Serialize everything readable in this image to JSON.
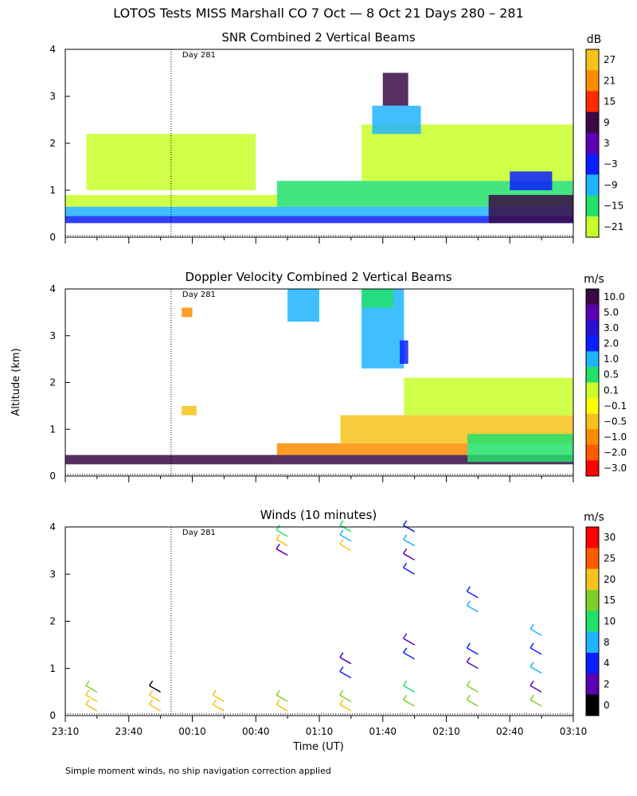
{
  "page": {
    "title": "LOTOS Tests MISS Marshall CO   7 Oct —  8 Oct 21 Days 280 – 281",
    "y_axis_label": "Altitude (km)",
    "x_axis_label": "Time (UT)",
    "footnote": "Simple moment winds, no ship navigation correction applied"
  },
  "chart_data": [
    {
      "id": "snr",
      "type": "heatmap",
      "title": "SNR Combined 2 Vertical Beams",
      "units": "dB",
      "ylim": [
        0,
        4
      ],
      "yticks": [
        "0",
        "1",
        "2",
        "3",
        "4"
      ],
      "xlim_minutes": [
        0,
        240
      ],
      "day_marker": {
        "label": "Day 281",
        "t_minutes": 50
      },
      "colorbar": {
        "labels": [
          "27",
          "21",
          "15",
          "9",
          "3",
          "−3",
          "−9",
          "−15",
          "−21"
        ],
        "colors": [
          "#f7c21a",
          "#ff8c00",
          "#ff2a00",
          "#3a0a45",
          "#5a00b0",
          "#0a1fff",
          "#1eb4ff",
          "#22e06a",
          "#c8ff2a"
        ]
      },
      "regions": [
        {
          "t": [
            0,
            240
          ],
          "alt": [
            0.45,
            0.65
          ],
          "color": "#1eb4ff"
        },
        {
          "t": [
            0,
            240
          ],
          "alt": [
            0.3,
            0.45
          ],
          "color": "#0a1fff"
        },
        {
          "t": [
            0,
            100
          ],
          "alt": [
            0.65,
            0.9
          ],
          "color": "#c8ff2a"
        },
        {
          "t": [
            100,
            240
          ],
          "alt": [
            0.65,
            1.2
          ],
          "color": "#22e06a"
        },
        {
          "t": [
            140,
            240
          ],
          "alt": [
            1.2,
            2.4
          ],
          "color": "#c8ff2a"
        },
        {
          "t": [
            200,
            240
          ],
          "alt": [
            0.3,
            0.9
          ],
          "color": "#3a0a45"
        },
        {
          "t": [
            150,
            162
          ],
          "alt": [
            2.8,
            3.5
          ],
          "color": "#3a0a45"
        },
        {
          "t": [
            145,
            168
          ],
          "alt": [
            2.2,
            2.8
          ],
          "color": "#1eb4ff"
        },
        {
          "t": [
            10,
            90
          ],
          "alt": [
            1.0,
            2.2
          ],
          "color": "#c8ff2a"
        },
        {
          "t": [
            210,
            230
          ],
          "alt": [
            1.0,
            1.4
          ],
          "color": "#0a1fff"
        }
      ]
    },
    {
      "id": "doppler",
      "type": "heatmap",
      "title": "Doppler Velocity Combined 2 Vertical Beams",
      "units": "m/s",
      "ylim": [
        0,
        4
      ],
      "yticks": [
        "0",
        "1",
        "2",
        "3",
        "4"
      ],
      "xlim_minutes": [
        0,
        240
      ],
      "day_marker": {
        "label": "Day 281",
        "t_minutes": 50
      },
      "colorbar": {
        "labels": [
          "10.0",
          "5.0",
          "3.0",
          "2.0",
          "1.0",
          "0.5",
          "0.1",
          "−0.1",
          "−0.5",
          "−1.0",
          "−2.0",
          "−3.0"
        ],
        "colors": [
          "#3a0a45",
          "#5a00b0",
          "#2a10d0",
          "#0a1fff",
          "#1eb4ff",
          "#22e06a",
          "#c8ff2a",
          "#ffff00",
          "#f7c21a",
          "#ff8c00",
          "#ff5a00",
          "#ff0000"
        ]
      },
      "regions": [
        {
          "t": [
            0,
            240
          ],
          "alt": [
            0.25,
            0.45
          ],
          "color": "#3a0a45"
        },
        {
          "t": [
            100,
            190
          ],
          "alt": [
            0.45,
            0.7
          ],
          "color": "#ff8c00"
        },
        {
          "t": [
            130,
            240
          ],
          "alt": [
            0.7,
            1.3
          ],
          "color": "#f7c21a"
        },
        {
          "t": [
            190,
            240
          ],
          "alt": [
            0.3,
            0.9
          ],
          "color": "#22e06a"
        },
        {
          "t": [
            140,
            160
          ],
          "alt": [
            2.3,
            4.0
          ],
          "color": "#1eb4ff"
        },
        {
          "t": [
            140,
            155
          ],
          "alt": [
            3.6,
            4.0
          ],
          "color": "#22e06a"
        },
        {
          "t": [
            158,
            162
          ],
          "alt": [
            2.4,
            2.9
          ],
          "color": "#0a1fff"
        },
        {
          "t": [
            160,
            240
          ],
          "alt": [
            1.3,
            2.1
          ],
          "color": "#c8ff2a"
        },
        {
          "t": [
            105,
            120
          ],
          "alt": [
            3.3,
            4.0
          ],
          "color": "#1eb4ff"
        },
        {
          "t": [
            55,
            60
          ],
          "alt": [
            3.4,
            3.6
          ],
          "color": "#ff8c00"
        },
        {
          "t": [
            55,
            62
          ],
          "alt": [
            1.3,
            1.5
          ],
          "color": "#f7c21a"
        }
      ]
    },
    {
      "id": "winds",
      "type": "barbs",
      "title": "Winds (10 minutes)",
      "units": "m/s",
      "ylim": [
        0,
        4
      ],
      "yticks": [
        "0",
        "1",
        "2",
        "3",
        "4"
      ],
      "xlim_minutes": [
        0,
        240
      ],
      "day_marker": {
        "label": "Day 281",
        "t_minutes": 50
      },
      "xticks": [
        "23:10",
        "23:40",
        "00:10",
        "00:40",
        "01:10",
        "01:40",
        "02:10",
        "02:40",
        "03:10"
      ],
      "colorbar": {
        "labels": [
          "30",
          "25",
          "20",
          "15",
          "10",
          "8",
          "4",
          "2",
          "0"
        ],
        "colors": [
          "#ff0000",
          "#ff5a00",
          "#f7c21a",
          "#7dd12a",
          "#22e06a",
          "#1eb4ff",
          "#0a1fff",
          "#5a00b0",
          "#000000"
        ]
      },
      "profiles": [
        {
          "t": 15,
          "barbs": [
            {
              "alt": 0.1,
              "color": "#f7c21a"
            },
            {
              "alt": 0.3,
              "color": "#f7c21a"
            },
            {
              "alt": 0.5,
              "color": "#7dd12a"
            }
          ]
        },
        {
          "t": 45,
          "barbs": [
            {
              "alt": 0.1,
              "color": "#f7c21a"
            },
            {
              "alt": 0.3,
              "color": "#f7c21a"
            },
            {
              "alt": 0.5,
              "color": "#000000"
            }
          ]
        },
        {
          "t": 75,
          "barbs": [
            {
              "alt": 0.1,
              "color": "#f7c21a"
            },
            {
              "alt": 0.3,
              "color": "#f7c21a"
            }
          ]
        },
        {
          "t": 105,
          "barbs": [
            {
              "alt": 0.1,
              "color": "#f7c21a"
            },
            {
              "alt": 0.3,
              "color": "#7dd12a"
            },
            {
              "alt": 3.4,
              "color": "#5a00b0"
            },
            {
              "alt": 3.6,
              "color": "#f7c21a"
            },
            {
              "alt": 3.8,
              "color": "#22e06a"
            }
          ]
        },
        {
          "t": 135,
          "barbs": [
            {
              "alt": 0.1,
              "color": "#f7c21a"
            },
            {
              "alt": 0.3,
              "color": "#7dd12a"
            },
            {
              "alt": 0.8,
              "color": "#0a1fff"
            },
            {
              "alt": 1.1,
              "color": "#5a00b0"
            },
            {
              "alt": 3.5,
              "color": "#f7c21a"
            },
            {
              "alt": 3.7,
              "color": "#1eb4ff"
            },
            {
              "alt": 3.9,
              "color": "#22e06a"
            }
          ]
        },
        {
          "t": 165,
          "barbs": [
            {
              "alt": 0.2,
              "color": "#7dd12a"
            },
            {
              "alt": 0.5,
              "color": "#22e06a"
            },
            {
              "alt": 1.2,
              "color": "#0a1fff"
            },
            {
              "alt": 1.5,
              "color": "#5a00b0"
            },
            {
              "alt": 3.0,
              "color": "#0a1fff"
            },
            {
              "alt": 3.3,
              "color": "#5a00b0"
            },
            {
              "alt": 3.6,
              "color": "#1eb4ff"
            },
            {
              "alt": 3.9,
              "color": "#0a1fff"
            }
          ]
        },
        {
          "t": 195,
          "barbs": [
            {
              "alt": 0.2,
              "color": "#7dd12a"
            },
            {
              "alt": 0.5,
              "color": "#7dd12a"
            },
            {
              "alt": 1.0,
              "color": "#5a00b0"
            },
            {
              "alt": 1.3,
              "color": "#0a1fff"
            },
            {
              "alt": 2.2,
              "color": "#1eb4ff"
            },
            {
              "alt": 2.5,
              "color": "#0a1fff"
            }
          ]
        },
        {
          "t": 225,
          "barbs": [
            {
              "alt": 0.2,
              "color": "#7dd12a"
            },
            {
              "alt": 0.5,
              "color": "#5a00b0"
            },
            {
              "alt": 0.9,
              "color": "#1eb4ff"
            },
            {
              "alt": 1.3,
              "color": "#0a1fff"
            },
            {
              "alt": 1.7,
              "color": "#1eb4ff"
            }
          ]
        }
      ]
    }
  ]
}
